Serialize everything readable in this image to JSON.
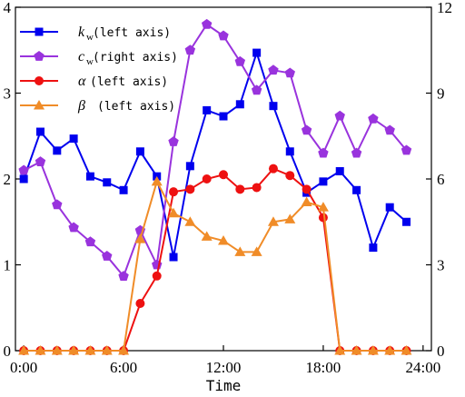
{
  "chart_data": {
    "type": "line",
    "xlabel": "Time",
    "x_tick_labels": [
      "0:00",
      "6:00",
      "12:00",
      "18:00",
      "24:00"
    ],
    "x_ticks": [
      0,
      6,
      12,
      18,
      24
    ],
    "xlim": [
      -0.5,
      24.5
    ],
    "left_axis": {
      "ylim": [
        0,
        4
      ],
      "ticks": [
        0,
        1,
        2,
        3,
        4
      ]
    },
    "right_axis": {
      "ylim": [
        0,
        12
      ],
      "ticks": [
        0,
        3,
        6,
        9,
        12
      ]
    },
    "x": [
      0,
      1,
      2,
      3,
      4,
      5,
      6,
      7,
      8,
      9,
      10,
      11,
      12,
      13,
      14,
      15,
      16,
      17,
      18,
      19,
      20,
      21,
      22,
      23
    ],
    "series": [
      {
        "key": "kw",
        "symbol": "k",
        "subscript": "w",
        "axis_note": "(left axis)",
        "axis": "left",
        "color": "#0000ee",
        "marker": "square",
        "values": [
          2.0,
          2.55,
          2.33,
          2.47,
          2.03,
          1.96,
          1.87,
          2.32,
          2.03,
          1.09,
          2.15,
          2.8,
          2.73,
          2.87,
          3.47,
          2.85,
          2.32,
          1.84,
          1.97,
          2.09,
          1.87,
          1.2,
          1.67,
          1.5
        ]
      },
      {
        "key": "cw",
        "symbol": "c",
        "subscript": "w",
        "axis_note": "(right axis)",
        "axis": "right",
        "color": "#9933dd",
        "marker": "pentagon",
        "values": [
          6.3,
          6.6,
          5.1,
          4.3,
          3.8,
          3.3,
          2.6,
          4.2,
          3.0,
          7.3,
          10.5,
          11.4,
          11.0,
          10.1,
          9.1,
          9.8,
          9.7,
          7.7,
          6.9,
          8.2,
          6.9,
          8.1,
          7.7,
          7.0
        ]
      },
      {
        "key": "alpha",
        "symbol": "α",
        "subscript": "",
        "axis_note": "(left axis)",
        "axis": "left",
        "color": "#ee1111",
        "marker": "circle",
        "values": [
          0,
          0,
          0,
          0,
          0,
          0,
          0,
          0.55,
          0.87,
          1.85,
          1.88,
          2.0,
          2.05,
          1.88,
          1.9,
          2.12,
          2.04,
          1.88,
          1.55,
          0,
          0,
          0,
          0,
          0
        ]
      },
      {
        "key": "beta",
        "symbol": "β",
        "subscript": "",
        "axis_note": "(left axis)",
        "axis": "left",
        "color": "#f08c28",
        "marker": "triangle",
        "values": [
          0,
          0,
          0,
          0,
          0,
          0,
          0,
          1.3,
          1.97,
          1.6,
          1.5,
          1.33,
          1.28,
          1.15,
          1.15,
          1.5,
          1.53,
          1.73,
          1.67,
          0,
          0,
          0,
          0,
          0
        ]
      }
    ],
    "legend_placement": "top-left",
    "grid": false
  }
}
